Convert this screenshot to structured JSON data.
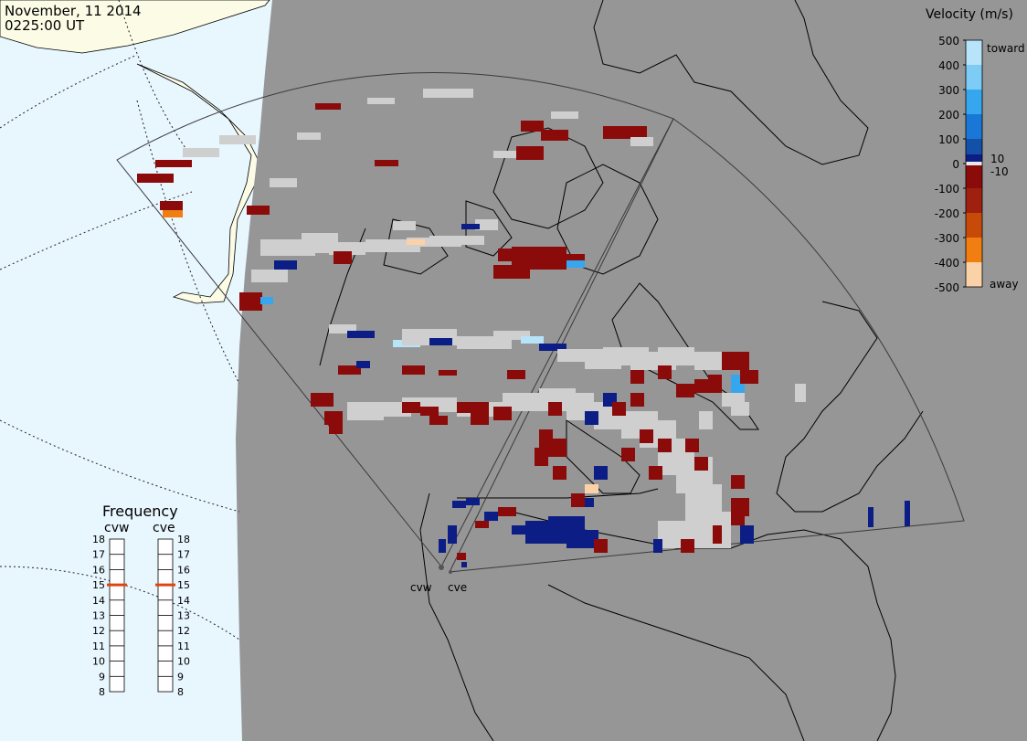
{
  "header": {
    "date": "November, 11 2014",
    "time": "0225:00 UT"
  },
  "velocity_scale": {
    "title": "Velocity (m/s)",
    "ticks": [
      "500",
      "400",
      "300",
      "200",
      "100",
      "0",
      "-100",
      "-200",
      "-300",
      "-400",
      "-500"
    ],
    "inner_labels": [
      "10",
      "-10"
    ],
    "toward_label": "toward",
    "away_label": "away",
    "colors": [
      "#b8e4fa",
      "#7cccf5",
      "#36a6ef",
      "#1978d6",
      "#1450a8",
      "#0c1e86",
      "#e9e9e9",
      "#8b0a0a",
      "#a02010",
      "#c84a08",
      "#f07e10",
      "#fbd2a8"
    ]
  },
  "frequency_panel": {
    "title": "Frequency",
    "radars": [
      "cvw",
      "cve"
    ],
    "scale": [
      "18",
      "17",
      "16",
      "15",
      "14",
      "13",
      "12",
      "11",
      "10",
      "9",
      "8"
    ],
    "cvw_value": 15,
    "cve_value": 15,
    "marker_color": "#e0440e"
  },
  "radar_sites": [
    "cvw",
    "cve"
  ],
  "colors": {
    "ocean": "#e8f6fe",
    "land_day": "#fbfbe6",
    "night_shade": "#969696",
    "gs_scatter": "#cfcfcf"
  }
}
